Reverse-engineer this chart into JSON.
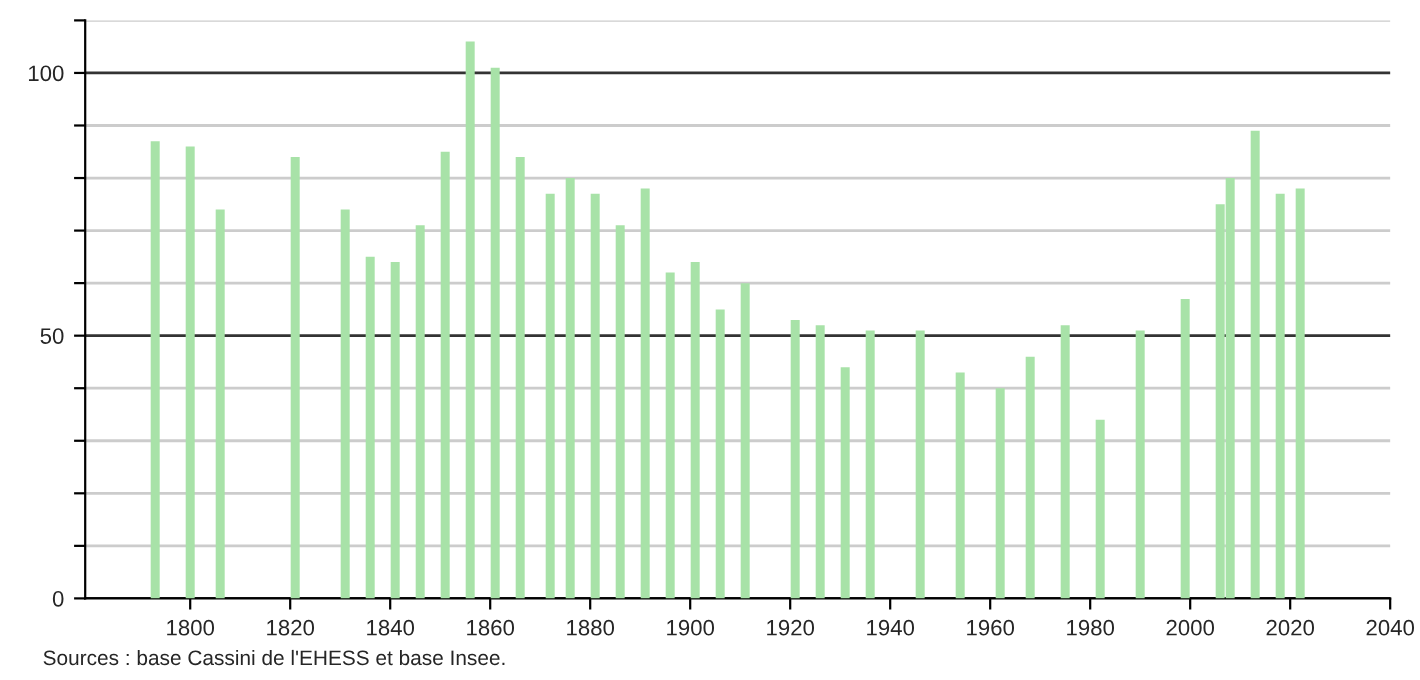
{
  "chart_data": {
    "type": "bar",
    "x": [
      1793,
      1800,
      1806,
      1821,
      1831,
      1836,
      1841,
      1846,
      1851,
      1856,
      1861,
      1866,
      1872,
      1876,
      1881,
      1886,
      1891,
      1896,
      1901,
      1906,
      1911,
      1921,
      1926,
      1931,
      1936,
      1946,
      1954,
      1962,
      1968,
      1975,
      1982,
      1990,
      1999,
      2006,
      2008,
      2013,
      2018,
      2022
    ],
    "values": [
      87,
      86,
      74,
      84,
      74,
      65,
      64,
      71,
      85,
      106,
      101,
      84,
      77,
      80,
      77,
      71,
      78,
      62,
      64,
      55,
      60,
      53,
      52,
      44,
      51,
      51,
      43,
      40,
      46,
      52,
      34,
      51,
      57,
      75,
      80,
      89,
      77,
      78
    ],
    "color": "#a8e2a8",
    "xlim": [
      1779,
      2040
    ],
    "xticks": [
      1800,
      1820,
      1840,
      1860,
      1880,
      1900,
      1920,
      1940,
      1960,
      1980,
      2000,
      2020,
      2040
    ],
    "ylim": [
      0,
      110
    ],
    "yticks": [
      0,
      {
        "value": 10,
        "label": null
      },
      {
        "value": 20,
        "label": null
      },
      {
        "value": 30,
        "label": null
      },
      {
        "value": 40,
        "label": null
      },
      50,
      {
        "value": 60,
        "label": null
      },
      {
        "value": 70,
        "label": null
      },
      {
        "value": 80,
        "label": null
      },
      {
        "value": 90,
        "label": null
      },
      100,
      {
        "value": 110,
        "label": null
      }
    ],
    "grid": "y",
    "annotations": [
      "Sources : base Cassini de l'EHESS et base Insee."
    ]
  }
}
